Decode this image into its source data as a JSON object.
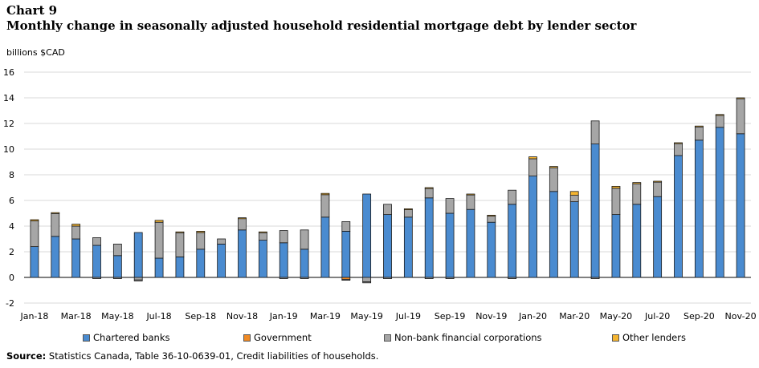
{
  "header": {
    "chart_label": "Chart 9",
    "title": "Monthly change in seasonally adjusted household residential mortgage debt by lender sector",
    "unit": "billions $CAD"
  },
  "source": {
    "prefix": "Source:",
    "text": " Statistics Canada, Table 36-10-0639-01, Credit liabilities of households."
  },
  "colors": {
    "chartered_banks": "#4a8bd0",
    "government": "#f08a24",
    "non_bank": "#a6a6a6",
    "other_lenders": "#f5b531",
    "bar_outline": "#1a1a1a",
    "grid": "#d9d9d9"
  },
  "chart_data": {
    "type": "bar",
    "stacked": true,
    "categories": [
      "Jan-18",
      "Feb-18",
      "Mar-18",
      "Apr-18",
      "May-18",
      "Jun-18",
      "Jul-18",
      "Aug-18",
      "Sep-18",
      "Oct-18",
      "Nov-18",
      "Dec-18",
      "Jan-19",
      "Feb-19",
      "Mar-19",
      "Apr-19",
      "May-19",
      "Jun-19",
      "Jul-19",
      "Aug-19",
      "Sep-19",
      "Oct-19",
      "Nov-19",
      "Dec-19",
      "Jan-20",
      "Feb-20",
      "Mar-20",
      "Apr-20",
      "May-20",
      "Jun-20",
      "Jul-20",
      "Aug-20",
      "Sep-20",
      "Oct-20",
      "Nov-20"
    ],
    "x_tick_labels": [
      "Jan-18",
      "Mar-18",
      "May-18",
      "Jul-18",
      "Sep-18",
      "Nov-18",
      "Jan-19",
      "Mar-19",
      "May-19",
      "Jul-19",
      "Sep-19",
      "Nov-19",
      "Jan-20",
      "Mar-20",
      "May-20",
      "Jul-20",
      "Sep-20",
      "Nov-20"
    ],
    "series": [
      {
        "name": "Chartered banks",
        "color_key": "chartered_banks",
        "values": [
          2.4,
          3.2,
          3.0,
          2.5,
          1.7,
          3.5,
          1.5,
          1.6,
          2.2,
          2.6,
          3.7,
          2.9,
          2.7,
          2.2,
          4.7,
          3.6,
          6.5,
          4.9,
          4.7,
          6.2,
          5.0,
          5.3,
          4.3,
          5.7,
          7.9,
          6.7,
          5.9,
          10.4,
          4.9,
          5.7,
          6.3,
          9.5,
          10.7,
          11.7,
          11.2
        ]
      },
      {
        "name": "Government",
        "color_key": "government",
        "values": [
          0.0,
          0.0,
          0.0,
          0.0,
          0.0,
          0.0,
          0.0,
          0.0,
          0.0,
          0.0,
          0.0,
          0.0,
          0.0,
          0.0,
          0.0,
          -0.15,
          0.0,
          0.0,
          0.0,
          0.0,
          0.0,
          0.0,
          0.0,
          0.0,
          0.0,
          0.0,
          0.0,
          0.0,
          0.0,
          0.0,
          0.0,
          0.0,
          0.0,
          0.0,
          0.0
        ]
      },
      {
        "name": "Non-bank financial corporations",
        "color_key": "non_bank",
        "values": [
          2.0,
          1.8,
          1.0,
          0.6,
          0.9,
          -0.2,
          2.8,
          1.9,
          1.3,
          0.4,
          0.9,
          0.6,
          0.95,
          1.5,
          1.75,
          0.75,
          -0.35,
          0.8,
          0.6,
          0.75,
          1.15,
          1.15,
          0.5,
          1.1,
          1.35,
          1.85,
          0.5,
          1.8,
          2.05,
          1.6,
          1.15,
          0.95,
          1.05,
          0.95,
          2.75
        ]
      },
      {
        "name": "Other lenders",
        "color_key": "other_lenders",
        "values": [
          0.1,
          0.05,
          0.15,
          0.0,
          0.0,
          0.0,
          0.15,
          0.05,
          0.1,
          0.0,
          0.05,
          0.05,
          0.0,
          0.0,
          0.1,
          0.0,
          0.0,
          0.0,
          0.05,
          0.05,
          0.0,
          0.05,
          0.05,
          0.0,
          0.15,
          0.1,
          0.3,
          0.0,
          0.15,
          0.1,
          0.05,
          0.05,
          0.05,
          0.05,
          0.05
        ]
      },
      {
        "name": "",
        "color_key": "non_bank",
        "values": [
          0,
          0,
          0,
          -0.1,
          -0.1,
          -0.05,
          0,
          0,
          0,
          0,
          0,
          0,
          -0.1,
          -0.1,
          0,
          -0.05,
          -0.05,
          -0.1,
          0,
          -0.1,
          -0.1,
          0,
          0,
          -0.1,
          0,
          0,
          0,
          -0.1,
          0,
          0,
          0,
          0,
          0,
          0,
          0
        ]
      }
    ],
    "ylim": [
      -2,
      16
    ],
    "y_ticks": [
      -2,
      0,
      2,
      4,
      6,
      8,
      10,
      12,
      14,
      16
    ],
    "grid": true,
    "legend_position": "bottom"
  }
}
